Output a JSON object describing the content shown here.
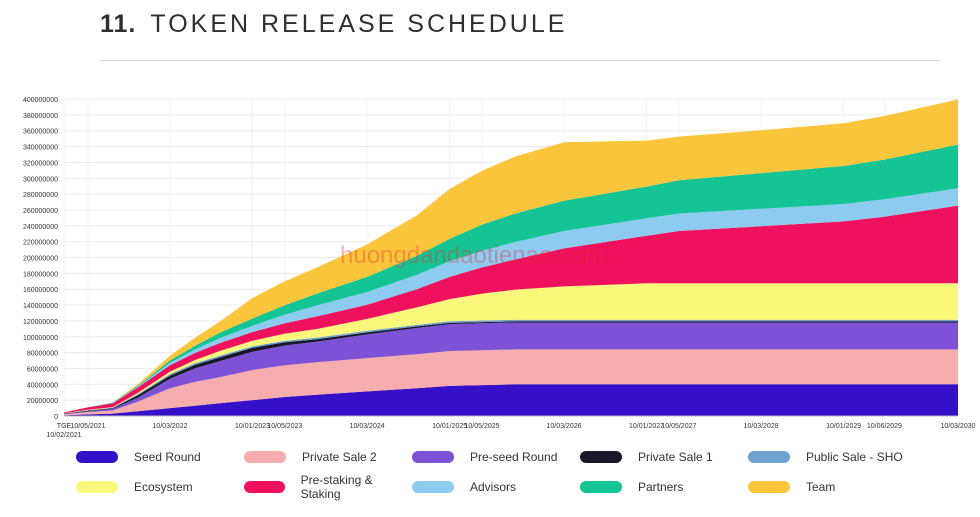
{
  "heading": {
    "number": "11.",
    "title": "TOKEN RELEASE SCHEDULE"
  },
  "watermark": "huongdandaotienao.com",
  "chart_data": {
    "type": "area",
    "stacked": true,
    "ylim": [
      0,
      400000000
    ],
    "yticks": [
      0,
      20000000,
      40000000,
      60000000,
      80000000,
      100000000,
      120000000,
      140000000,
      160000000,
      180000000,
      200000000,
      220000000,
      240000000,
      260000000,
      280000000,
      300000000,
      320000000,
      340000000,
      360000000,
      380000000,
      400000000
    ],
    "ytick_labels": [
      "0",
      "20000000",
      "40000000",
      "60000000",
      "80000000",
      "100000000",
      "120000000",
      "140000000",
      "160000000",
      "180000000",
      "200000000",
      "220000000",
      "240000000",
      "260000000",
      "280000000",
      "300000000",
      "320000000",
      "340000000",
      "360000000",
      "380000000",
      "400000000"
    ],
    "x": [
      "10/02/2021",
      "10/05/2021",
      "10/08/2021",
      "10/11/2021",
      "10/03/2022",
      "10/06/2022",
      "10/09/2022",
      "10/01/2023",
      "10/05/2023",
      "10/09/2023",
      "10/03/2024",
      "10/09/2024",
      "10/01/2025",
      "10/05/2025",
      "10/09/2025",
      "10/03/2026",
      "10/01/2027",
      "10/05/2027",
      "10/03/2028",
      "10/01/2029",
      "10/06/2029",
      "10/03/2030"
    ],
    "xticks": [
      {
        "x": "10/02/2021",
        "label": "TGE\n10/02/2021"
      },
      {
        "x": "10/05/2021",
        "label": "10/05/2021"
      },
      {
        "x": "10/03/2022",
        "label": "10/03/2022"
      },
      {
        "x": "10/01/2023",
        "label": "10/01/2023"
      },
      {
        "x": "10/05/2023",
        "label": "10/05/2023"
      },
      {
        "x": "10/03/2024",
        "label": "10/03/2024"
      },
      {
        "x": "10/01/2025",
        "label": "10/01/2025"
      },
      {
        "x": "10/05/2025",
        "label": "10/05/2025"
      },
      {
        "x": "10/03/2026",
        "label": "10/03/2026"
      },
      {
        "x": "10/01/2027",
        "label": "10/01/2027"
      },
      {
        "x": "10/05/2027",
        "label": "10/05/2027"
      },
      {
        "x": "10/03/2028",
        "label": "10/03/2028"
      },
      {
        "x": "10/01/2029",
        "label": "10/01/2029"
      },
      {
        "x": "10/06/2029",
        "label": "10/06/2029"
      },
      {
        "x": "10/03/2030",
        "label": "10/03/2030"
      }
    ],
    "series": [
      {
        "name": "Seed Round",
        "color": "#3410c8",
        "values": [
          1000000,
          2000000,
          3000000,
          6000000,
          10000000,
          13000000,
          16000000,
          20000000,
          24000000,
          27000000,
          31000000,
          35000000,
          38000000,
          39000000,
          40000000,
          40000000,
          40000000,
          40000000,
          40000000,
          40000000,
          40000000,
          40000000
        ]
      },
      {
        "name": "Private Sale 2",
        "color": "#f7adad",
        "values": [
          1000000,
          3000000,
          4000000,
          12000000,
          25000000,
          30000000,
          33000000,
          38000000,
          40000000,
          41000000,
          42000000,
          43000000,
          44000000,
          44000000,
          44000000,
          44000000,
          44000000,
          44000000,
          44000000,
          44000000,
          44000000,
          44000000
        ]
      },
      {
        "name": "Pre-seed Round",
        "color": "#7d52d6",
        "values": [
          500000,
          1000000,
          2000000,
          5000000,
          12000000,
          17000000,
          20000000,
          23000000,
          25000000,
          26000000,
          30000000,
          33000000,
          34000000,
          34000000,
          34000000,
          34000000,
          34000000,
          34000000,
          34000000,
          34000000,
          34000000,
          34000000
        ]
      },
      {
        "name": "Private Sale 1",
        "color": "#18182a",
        "values": [
          500000,
          800000,
          1000000,
          3000000,
          4000000,
          4500000,
          5000000,
          5000000,
          4000000,
          3000000,
          2500000,
          2000000,
          1500000,
          1500000,
          1500000,
          1500000,
          1500000,
          1500000,
          1500000,
          1500000,
          1500000,
          1500000
        ]
      },
      {
        "name": "Public Sale - SHO",
        "color": "#6fa2d0",
        "values": [
          300000,
          500000,
          600000,
          1500000,
          2000000,
          2000000,
          2000000,
          2000000,
          2000000,
          2000000,
          2000000,
          2000000,
          2000000,
          2000000,
          2000000,
          2000000,
          2000000,
          2000000,
          2000000,
          2000000,
          2000000,
          2000000
        ]
      },
      {
        "name": "Ecosystem",
        "color": "#fbf87c",
        "values": [
          300000,
          500000,
          600000,
          1500000,
          3000000,
          4000000,
          6000000,
          7000000,
          9000000,
          11000000,
          15000000,
          22000000,
          28000000,
          34000000,
          38000000,
          42000000,
          46000000,
          46000000,
          46000000,
          46000000,
          46000000,
          46000000
        ]
      },
      {
        "name": "Pre-staking & Staking",
        "color": "#f0115e",
        "values": [
          1000000,
          3000000,
          5000000,
          7000000,
          8000000,
          9000000,
          10000000,
          11000000,
          13000000,
          16000000,
          18000000,
          23000000,
          28000000,
          33000000,
          38000000,
          48000000,
          60000000,
          66000000,
          72000000,
          78000000,
          84000000,
          98000000
        ]
      },
      {
        "name": "Advisors",
        "color": "#8ecbf1",
        "values": [
          0,
          0,
          500000,
          1000000,
          3000000,
          4000000,
          6000000,
          8000000,
          11000000,
          14000000,
          16000000,
          18000000,
          20000000,
          21000000,
          22000000,
          22000000,
          22000000,
          22000000,
          22000000,
          22000000,
          22000000,
          22000000
        ]
      },
      {
        "name": "Partners",
        "color": "#14c494",
        "values": [
          0,
          0,
          500000,
          1000000,
          3000000,
          5000000,
          7000000,
          9000000,
          12000000,
          15000000,
          19000000,
          24000000,
          28000000,
          33000000,
          36000000,
          38000000,
          40000000,
          42000000,
          45000000,
          48000000,
          50000000,
          55000000
        ]
      },
      {
        "name": "Team",
        "color": "#fbc63c",
        "values": [
          0,
          0,
          0,
          2000000,
          6000000,
          10000000,
          14000000,
          26000000,
          30000000,
          33000000,
          41000000,
          51000000,
          63000000,
          68000000,
          72000000,
          74000000,
          58000000,
          55000000,
          54000000,
          54000000,
          55000000,
          57000000
        ]
      }
    ]
  }
}
